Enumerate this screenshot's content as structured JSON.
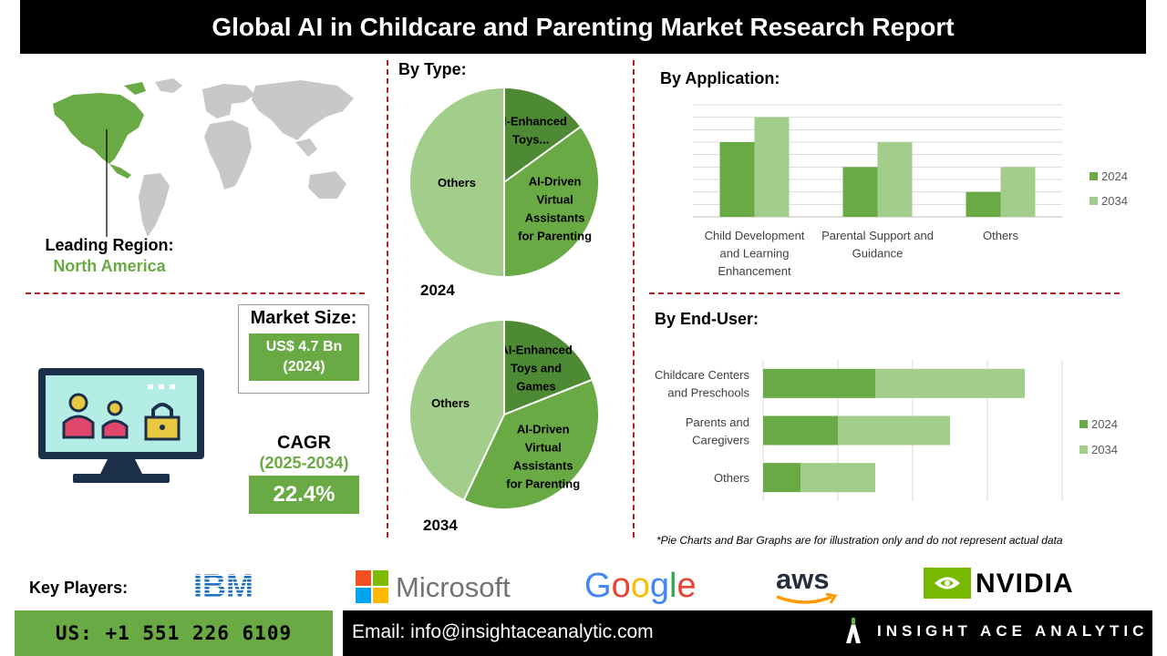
{
  "title": "Global AI in Childcare and Parenting Market Research Report",
  "leading_region": {
    "label": "Leading Region:",
    "value": "North America"
  },
  "market_size": {
    "label": "Market Size:",
    "value_line1": "US$ 4.7 Bn",
    "value_line2": "(2024)"
  },
  "cagr": {
    "label": "CAGR",
    "period": "(2025-2034)",
    "value": "22.4%"
  },
  "by_type": {
    "title": "By Type:",
    "year_2024": "2024",
    "year_2034": "2034"
  },
  "by_application": {
    "title": "By  Application:"
  },
  "by_end_user": {
    "title": "By End-User:"
  },
  "disclaimer": "*Pie Charts and Bar Graphs are for illustration only and do not represent actual data",
  "key_players": {
    "label": "Key Players:",
    "logos": [
      "IBM",
      "Microsoft",
      "Google",
      "aws",
      "NVIDIA"
    ]
  },
  "contact": {
    "phone": "US: +1 551 226 6109",
    "email": "Email: info@insightaceanalytic.com",
    "brand": "INSIGHT ACE ANALYTIC"
  },
  "colors": {
    "dark_green": "#4e8a34",
    "mid_green": "#6aaa44",
    "light_green": "#a3cd8a",
    "accent_red": "#b22222"
  },
  "chart_data": [
    {
      "type": "pie",
      "title": "2024",
      "slices": [
        {
          "label": "AI-Enhanced Toys...",
          "value": 15
        },
        {
          "label": "AI-Driven Virtual Assistants for Parenting",
          "value": 35
        },
        {
          "label": "Others",
          "value": 50
        }
      ]
    },
    {
      "type": "pie",
      "title": "2034",
      "slices": [
        {
          "label": "AI-Enhanced Toys and Games",
          "value": 19
        },
        {
          "label": "AI-Driven Virtual Assistants for Parenting",
          "value": 38
        },
        {
          "label": "Others",
          "value": 43
        }
      ]
    },
    {
      "type": "bar",
      "categories": [
        "Child Development and Learning Enhancement",
        "Parental Support and Guidance",
        "Others"
      ],
      "series": [
        {
          "name": "2024",
          "values": [
            6,
            4,
            2
          ]
        },
        {
          "name": "2034",
          "values": [
            8,
            6,
            4
          ]
        }
      ],
      "ylim": [
        0,
        9
      ],
      "grid": true,
      "legend": "right"
    },
    {
      "type": "bar",
      "orientation": "horizontal",
      "stacked": true,
      "categories": [
        "Childcare Centers and Preschools",
        "Parents and Caregivers",
        "Others"
      ],
      "series": [
        {
          "name": "2024",
          "values": [
            3,
            2,
            1
          ]
        },
        {
          "name": "2034",
          "values": [
            4,
            3,
            2
          ]
        }
      ],
      "xlim": [
        0,
        8
      ],
      "grid": true,
      "legend": "right"
    }
  ]
}
